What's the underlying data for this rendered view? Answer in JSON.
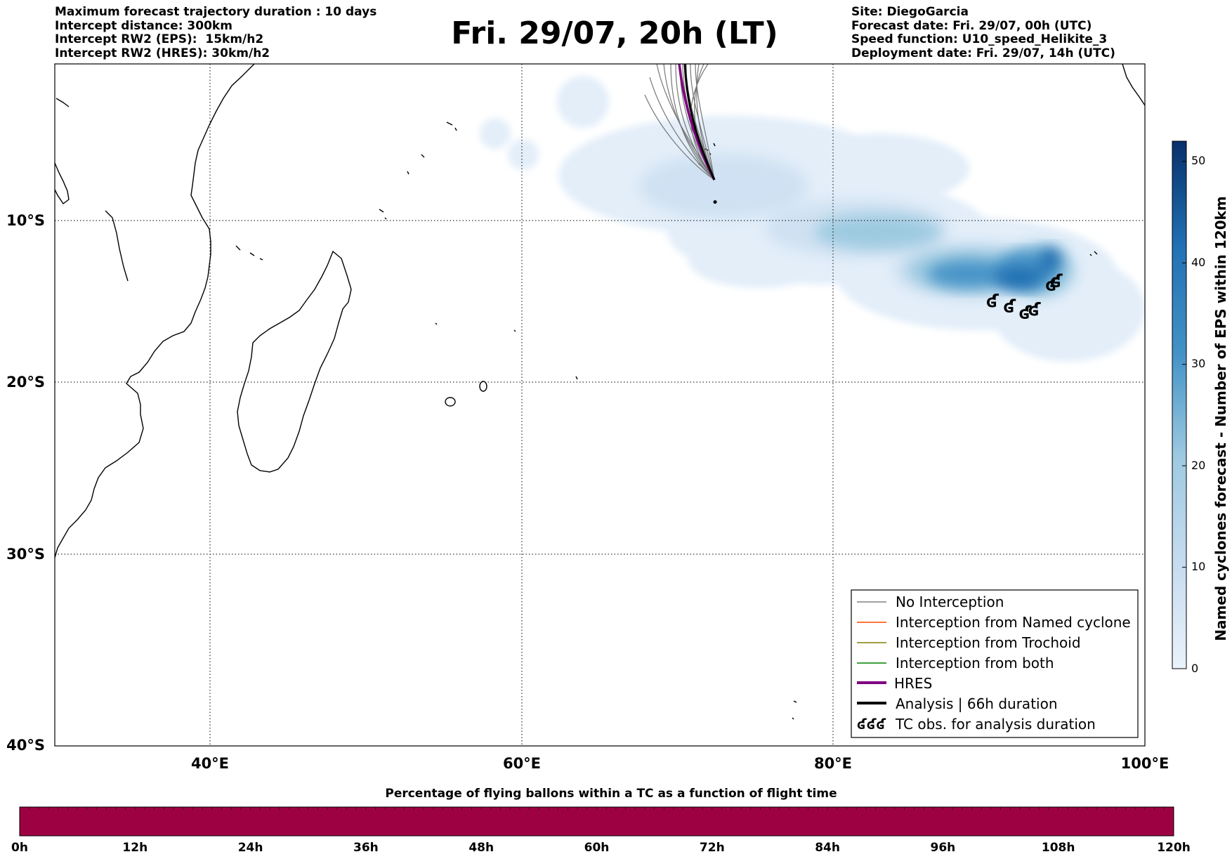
{
  "header": {
    "left_lines": [
      "Maximum forecast trajectory duration : 10 days",
      "Intercept distance: 300km",
      "Intercept RW2 (EPS):  15km/h2",
      "Intercept RW2 (HRES): 30km/h2"
    ],
    "title": "Fri. 29/07, 20h (LT)",
    "right_lines": [
      "Site: DiegoGarcia",
      "Forecast date: Fri. 29/07, 00h (UTC)",
      "Speed function: U10_speed_Helikite_3",
      "Deployment date: Fri. 29/07, 14h (UTC)"
    ]
  },
  "map": {
    "lon_range": [
      30,
      100
    ],
    "lat_range": [
      -40,
      1
    ],
    "lon_ticks": [
      "40°E",
      "60°E",
      "80°E",
      "100°E"
    ],
    "lat_ticks": [
      "10°S",
      "20°S",
      "30°S",
      "40°S"
    ],
    "grid": "dotted",
    "site_marker": {
      "lon": 72.4,
      "lat": -7.3
    }
  },
  "colorbar": {
    "label": "Named cyclones forecast - Number of EPS within 120km",
    "ticks": [
      "0",
      "10",
      "20",
      "30",
      "40",
      "50"
    ],
    "range": [
      0,
      52
    ],
    "colors": [
      "#e6f0fa",
      "#08306b"
    ]
  },
  "legend": {
    "placement": "lower-right",
    "entries": [
      {
        "label": "No Interception",
        "color": "#808080",
        "width": 1.5
      },
      {
        "label": "Interception from Named cyclone",
        "color": "#ff4500",
        "width": 1.5
      },
      {
        "label": "Interception from Trochoid",
        "color": "#808000",
        "width": 1.5
      },
      {
        "label": "Interception from both",
        "color": "#008000",
        "width": 1.5
      },
      {
        "label": "HRES",
        "color": "#800080",
        "width": 4
      },
      {
        "label": "Analysis | 66h duration",
        "color": "#000000",
        "width": 4
      },
      {
        "label": "TC obs. for analysis duration",
        "color": "#000000",
        "symbol": "ʛʛʛ"
      }
    ]
  },
  "bottom_bar": {
    "title": "Percentage of flying ballons within a TC as a function of flight time",
    "ticks": [
      "0h",
      "12h",
      "24h",
      "36h",
      "48h",
      "60h",
      "72h",
      "84h",
      "96h",
      "108h",
      "120h"
    ],
    "fill_color": "#9e0142"
  },
  "tc_obs": [
    {
      "lon": 90.2,
      "lat": -13.3
    },
    {
      "lon": 91.3,
      "lat": -13.6
    },
    {
      "lon": 92.3,
      "lat": -14.0
    },
    {
      "lon": 92.9,
      "lat": -13.8
    },
    {
      "lon": 94.0,
      "lat": -12.3
    },
    {
      "lon": 94.3,
      "lat": -12.1
    }
  ]
}
